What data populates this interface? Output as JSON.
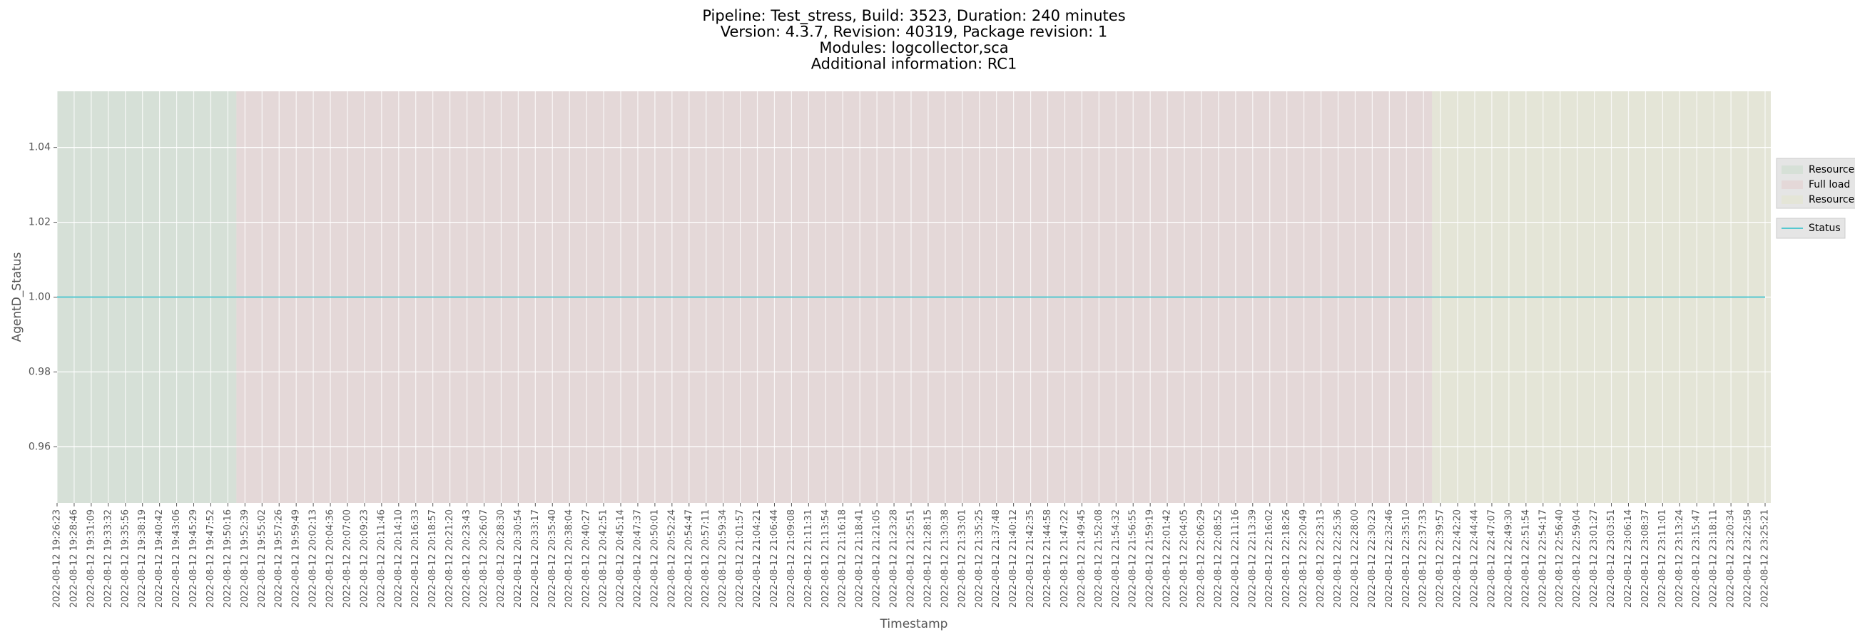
{
  "chart_data": {
    "type": "line",
    "title": [
      "Pipeline: Test_stress, Build: 3523, Duration: 240 minutes",
      "Version: 4.3.7, Revision: 40319, Package revision: 1",
      "Modules: logcollector,sca",
      "Additional information: RC1"
    ],
    "x_label": "Timestamp",
    "y_label": "AgentD_Status",
    "categories": [
      "2022-08-12 19:26:23",
      "2022-08-12 19:28:46",
      "2022-08-12 19:31:09",
      "2022-08-12 19:33:32",
      "2022-08-12 19:35:56",
      "2022-08-12 19:38:19",
      "2022-08-12 19:40:42",
      "2022-08-12 19:43:06",
      "2022-08-12 19:45:29",
      "2022-08-12 19:47:52",
      "2022-08-12 19:50:16",
      "2022-08-12 19:52:39",
      "2022-08-12 19:55:02",
      "2022-08-12 19:57:26",
      "2022-08-12 19:59:49",
      "2022-08-12 20:02:13",
      "2022-08-12 20:04:36",
      "2022-08-12 20:07:00",
      "2022-08-12 20:09:23",
      "2022-08-12 20:11:46",
      "2022-08-12 20:14:10",
      "2022-08-12 20:16:33",
      "2022-08-12 20:18:57",
      "2022-08-12 20:21:20",
      "2022-08-12 20:23:43",
      "2022-08-12 20:26:07",
      "2022-08-12 20:28:30",
      "2022-08-12 20:30:54",
      "2022-08-12 20:33:17",
      "2022-08-12 20:35:40",
      "2022-08-12 20:38:04",
      "2022-08-12 20:40:27",
      "2022-08-12 20:42:51",
      "2022-08-12 20:45:14",
      "2022-08-12 20:47:37",
      "2022-08-12 20:50:01",
      "2022-08-12 20:52:24",
      "2022-08-12 20:54:47",
      "2022-08-12 20:57:11",
      "2022-08-12 20:59:34",
      "2022-08-12 21:01:57",
      "2022-08-12 21:04:21",
      "2022-08-12 21:06:44",
      "2022-08-12 21:09:08",
      "2022-08-12 21:11:31",
      "2022-08-12 21:13:54",
      "2022-08-12 21:16:18",
      "2022-08-12 21:18:41",
      "2022-08-12 21:21:05",
      "2022-08-12 21:23:28",
      "2022-08-12 21:25:51",
      "2022-08-12 21:28:15",
      "2022-08-12 21:30:38",
      "2022-08-12 21:33:01",
      "2022-08-12 21:35:25",
      "2022-08-12 21:37:48",
      "2022-08-12 21:40:12",
      "2022-08-12 21:42:35",
      "2022-08-12 21:44:58",
      "2022-08-12 21:47:22",
      "2022-08-12 21:49:45",
      "2022-08-12 21:52:08",
      "2022-08-12 21:54:32",
      "2022-08-12 21:56:55",
      "2022-08-12 21:59:19",
      "2022-08-12 22:01:42",
      "2022-08-12 22:04:05",
      "2022-08-12 22:06:29",
      "2022-08-12 22:08:52",
      "2022-08-12 22:11:16",
      "2022-08-12 22:13:39",
      "2022-08-12 22:16:02",
      "2022-08-12 22:18:26",
      "2022-08-12 22:20:49",
      "2022-08-12 22:23:13",
      "2022-08-12 22:25:36",
      "2022-08-12 22:28:00",
      "2022-08-12 22:30:23",
      "2022-08-12 22:32:46",
      "2022-08-12 22:35:10",
      "2022-08-12 22:37:33",
      "2022-08-12 22:39:57",
      "2022-08-12 22:42:20",
      "2022-08-12 22:44:44",
      "2022-08-12 22:47:07",
      "2022-08-12 22:49:30",
      "2022-08-12 22:51:54",
      "2022-08-12 22:54:17",
      "2022-08-12 22:56:40",
      "2022-08-12 22:59:04",
      "2022-08-12 23:01:27",
      "2022-08-12 23:03:51",
      "2022-08-12 23:06:14",
      "2022-08-12 23:08:37",
      "2022-08-12 23:11:01",
      "2022-08-12 23:13:24",
      "2022-08-12 23:15:47",
      "2022-08-12 23:18:11",
      "2022-08-12 23:20:34",
      "2022-08-12 23:22:58",
      "2022-08-12 23:25:21"
    ],
    "series": [
      {
        "name": "Status",
        "color": "#56c8d0",
        "values": [
          1,
          1,
          1,
          1,
          1,
          1,
          1,
          1,
          1,
          1,
          1,
          1,
          1,
          1,
          1,
          1,
          1,
          1,
          1,
          1,
          1,
          1,
          1,
          1,
          1,
          1,
          1,
          1,
          1,
          1,
          1,
          1,
          1,
          1,
          1,
          1,
          1,
          1,
          1,
          1,
          1,
          1,
          1,
          1,
          1,
          1,
          1,
          1,
          1,
          1,
          1,
          1,
          1,
          1,
          1,
          1,
          1,
          1,
          1,
          1,
          1,
          1,
          1,
          1,
          1,
          1,
          1,
          1,
          1,
          1,
          1,
          1,
          1,
          1,
          1,
          1,
          1,
          1,
          1,
          1,
          1,
          1,
          1,
          1,
          1,
          1,
          1,
          1,
          1,
          1,
          1,
          1,
          1,
          1,
          1,
          1,
          1,
          1,
          1,
          1,
          1
        ]
      }
    ],
    "spans": [
      {
        "name": "Resource",
        "color": "#d6e0d7",
        "start": "2022-08-12 19:26:23",
        "end": "2022-08-12 19:50:16"
      },
      {
        "name": "Full load",
        "color": "#e4d8d8",
        "start": "2022-08-12 19:52:39",
        "end": "2022-08-12 22:37:33"
      },
      {
        "name": "Resource",
        "color": "#e4e5d7",
        "start": "2022-08-12 22:39:57",
        "end": "2022-08-12 23:25:21"
      }
    ],
    "ylim": [
      0.945,
      1.055
    ],
    "yticks": [
      0.96,
      0.98,
      {
        "value": 1,
        "label": "1.00"
      },
      1.02,
      1.04
    ],
    "grid": true
  }
}
